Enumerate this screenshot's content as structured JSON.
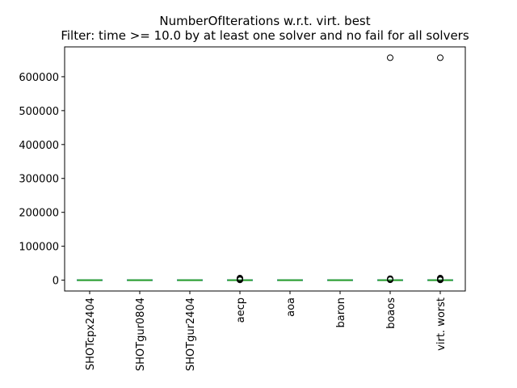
{
  "chart_data": {
    "type": "box",
    "title": "NumberOfIterations w.r.t. virt. best",
    "subtitle": "Filter: time >= 10.0 by at least one solver and no fail for all solvers",
    "xlabel": "",
    "ylabel": "",
    "categories": [
      "SHOTcpx2404",
      "SHOTgur0804",
      "SHOTgur2404",
      "aecp",
      "aoa",
      "baron",
      "boaos",
      "virt. worst"
    ],
    "ylim": [
      -32000,
      688000
    ],
    "yticks": [
      0,
      100000,
      200000,
      300000,
      400000,
      500000,
      600000
    ],
    "ytick_labels": [
      "0",
      "100000",
      "200000",
      "300000",
      "400000",
      "500000",
      "600000"
    ],
    "boxes": [
      {
        "name": "SHOTcpx2404",
        "whislo": 0,
        "q1": 0,
        "median": 0,
        "q3": 0,
        "whishi": 0,
        "fliers": []
      },
      {
        "name": "SHOTgur0804",
        "whislo": 0,
        "q1": 0,
        "median": 0,
        "q3": 0,
        "whishi": 0,
        "fliers": []
      },
      {
        "name": "SHOTgur2404",
        "whislo": 0,
        "q1": 0,
        "median": 0,
        "q3": 0,
        "whishi": 0,
        "fliers": []
      },
      {
        "name": "aecp",
        "whislo": 0,
        "q1": 0,
        "median": 0,
        "q3": 0,
        "whishi": 0,
        "fliers": [
          800,
          1500,
          2500,
          4000,
          6000
        ]
      },
      {
        "name": "aoa",
        "whislo": 0,
        "q1": 0,
        "median": 0,
        "q3": 0,
        "whishi": 0,
        "fliers": []
      },
      {
        "name": "baron",
        "whislo": 0,
        "q1": 0,
        "median": 0,
        "q3": 0,
        "whishi": 0,
        "fliers": []
      },
      {
        "name": "boaos",
        "whislo": 0,
        "q1": 0,
        "median": 0,
        "q3": 0,
        "whishi": 0,
        "fliers": [
          1000,
          2500,
          4500,
          656000
        ]
      },
      {
        "name": "virt. worst",
        "whislo": 0,
        "q1": 0,
        "median": 0,
        "q3": 0,
        "whishi": 0,
        "fliers": [
          800,
          1500,
          2500,
          4000,
          6000,
          656000
        ]
      }
    ],
    "grid": false,
    "legend": "none",
    "colors": {
      "box": "#1f77b4",
      "median": "#2ca02c",
      "flier": "#000000",
      "axes": "#000000"
    }
  }
}
